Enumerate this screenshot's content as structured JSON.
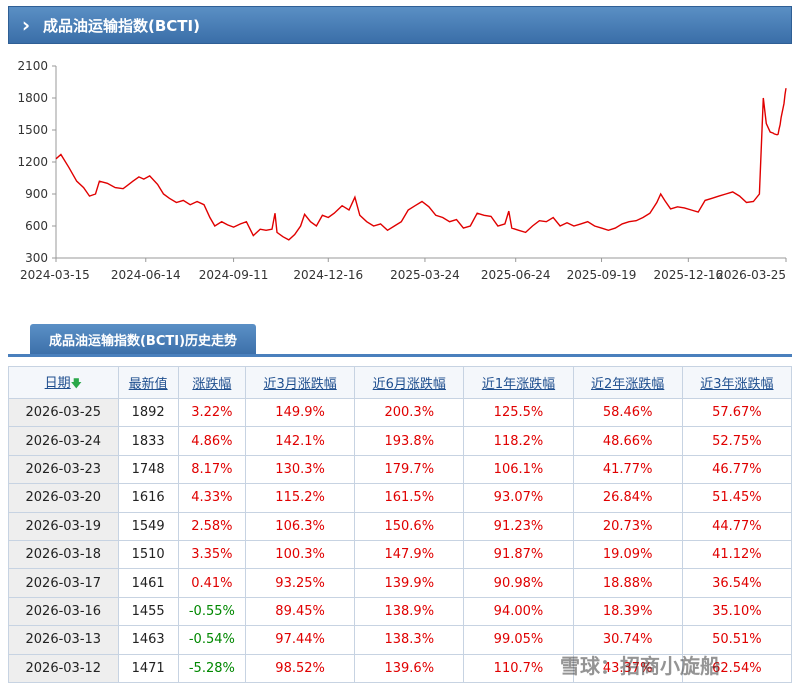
{
  "header": {
    "title": "成品油运输指数(BCTI)"
  },
  "tab": {
    "label": "成品油运输指数(BCTI)历史走势"
  },
  "chart_data": {
    "type": "line",
    "title": "",
    "xlabel": "",
    "ylabel": "",
    "ylim": [
      300,
      2100
    ],
    "yticks": [
      300,
      600,
      900,
      1200,
      1500,
      1800,
      2100
    ],
    "xticks": [
      "2024-03-15",
      "2024-06-14",
      "2024-09-11",
      "2024-12-16",
      "2025-03-24",
      "2025-06-24",
      "2025-09-19",
      "2025-12-16",
      "2026-03-25"
    ],
    "grid": false,
    "line_color": "#e00000",
    "series": [
      {
        "name": "",
        "points": [
          [
            "2024-03-15",
            1230
          ],
          [
            "2024-03-20",
            1270
          ],
          [
            "2024-03-28",
            1150
          ],
          [
            "2024-04-05",
            1020
          ],
          [
            "2024-04-12",
            960
          ],
          [
            "2024-04-18",
            880
          ],
          [
            "2024-04-24",
            900
          ],
          [
            "2024-04-28",
            1020
          ],
          [
            "2024-05-06",
            1000
          ],
          [
            "2024-05-14",
            960
          ],
          [
            "2024-05-22",
            950
          ],
          [
            "2024-06-01",
            1020
          ],
          [
            "2024-06-07",
            1060
          ],
          [
            "2024-06-12",
            1040
          ],
          [
            "2024-06-18",
            1070
          ],
          [
            "2024-06-26",
            990
          ],
          [
            "2024-07-02",
            900
          ],
          [
            "2024-07-08",
            860
          ],
          [
            "2024-07-15",
            820
          ],
          [
            "2024-07-22",
            840
          ],
          [
            "2024-07-29",
            800
          ],
          [
            "2024-08-05",
            830
          ],
          [
            "2024-08-12",
            800
          ],
          [
            "2024-08-18",
            680
          ],
          [
            "2024-08-23",
            600
          ],
          [
            "2024-08-30",
            640
          ],
          [
            "2024-09-05",
            610
          ],
          [
            "2024-09-11",
            590
          ],
          [
            "2024-09-18",
            620
          ],
          [
            "2024-09-24",
            640
          ],
          [
            "2024-10-01",
            510
          ],
          [
            "2024-10-08",
            570
          ],
          [
            "2024-10-14",
            560
          ],
          [
            "2024-10-20",
            570
          ],
          [
            "2024-10-23",
            720
          ],
          [
            "2024-10-25",
            540
          ],
          [
            "2024-10-31",
            500
          ],
          [
            "2024-11-06",
            470
          ],
          [
            "2024-11-12",
            520
          ],
          [
            "2024-11-18",
            600
          ],
          [
            "2024-11-22",
            710
          ],
          [
            "2024-11-28",
            640
          ],
          [
            "2024-12-04",
            600
          ],
          [
            "2024-12-10",
            700
          ],
          [
            "2024-12-16",
            680
          ],
          [
            "2024-12-22",
            720
          ],
          [
            "2024-12-30",
            790
          ],
          [
            "2025-01-06",
            750
          ],
          [
            "2025-01-12",
            870
          ],
          [
            "2025-01-17",
            700
          ],
          [
            "2025-01-24",
            640
          ],
          [
            "2025-01-31",
            600
          ],
          [
            "2025-02-07",
            620
          ],
          [
            "2025-02-14",
            560
          ],
          [
            "2025-02-21",
            600
          ],
          [
            "2025-02-28",
            640
          ],
          [
            "2025-03-07",
            750
          ],
          [
            "2025-03-14",
            790
          ],
          [
            "2025-03-21",
            830
          ],
          [
            "2025-03-28",
            780
          ],
          [
            "2025-04-04",
            700
          ],
          [
            "2025-04-11",
            680
          ],
          [
            "2025-04-18",
            640
          ],
          [
            "2025-04-25",
            660
          ],
          [
            "2025-05-02",
            580
          ],
          [
            "2025-05-09",
            600
          ],
          [
            "2025-05-16",
            720
          ],
          [
            "2025-05-23",
            700
          ],
          [
            "2025-05-30",
            690
          ],
          [
            "2025-06-06",
            600
          ],
          [
            "2025-06-13",
            620
          ],
          [
            "2025-06-17",
            740
          ],
          [
            "2025-06-20",
            580
          ],
          [
            "2025-06-27",
            560
          ],
          [
            "2025-07-04",
            540
          ],
          [
            "2025-07-11",
            600
          ],
          [
            "2025-07-18",
            650
          ],
          [
            "2025-07-25",
            640
          ],
          [
            "2025-08-01",
            680
          ],
          [
            "2025-08-08",
            600
          ],
          [
            "2025-08-15",
            630
          ],
          [
            "2025-08-22",
            600
          ],
          [
            "2025-08-29",
            620
          ],
          [
            "2025-09-05",
            640
          ],
          [
            "2025-09-12",
            600
          ],
          [
            "2025-09-19",
            580
          ],
          [
            "2025-09-26",
            560
          ],
          [
            "2025-10-03",
            580
          ],
          [
            "2025-10-10",
            620
          ],
          [
            "2025-10-17",
            640
          ],
          [
            "2025-10-24",
            650
          ],
          [
            "2025-10-31",
            680
          ],
          [
            "2025-11-07",
            720
          ],
          [
            "2025-11-14",
            820
          ],
          [
            "2025-11-18",
            900
          ],
          [
            "2025-11-22",
            840
          ],
          [
            "2025-11-28",
            760
          ],
          [
            "2025-12-05",
            780
          ],
          [
            "2025-12-12",
            770
          ],
          [
            "2025-12-19",
            750
          ],
          [
            "2025-12-26",
            730
          ],
          [
            "2026-01-02",
            840
          ],
          [
            "2026-01-09",
            860
          ],
          [
            "2026-01-16",
            880
          ],
          [
            "2026-01-23",
            900
          ],
          [
            "2026-01-30",
            920
          ],
          [
            "2026-02-06",
            880
          ],
          [
            "2026-02-13",
            820
          ],
          [
            "2026-02-20",
            830
          ],
          [
            "2026-02-26",
            900
          ],
          [
            "2026-03-02",
            1800
          ],
          [
            "2026-03-05",
            1560
          ],
          [
            "2026-03-09",
            1480
          ],
          [
            "2026-03-12",
            1471
          ],
          [
            "2026-03-13",
            1463
          ],
          [
            "2026-03-16",
            1455
          ],
          [
            "2026-03-17",
            1461
          ],
          [
            "2026-03-18",
            1510
          ],
          [
            "2026-03-19",
            1549
          ],
          [
            "2026-03-20",
            1616
          ],
          [
            "2026-03-23",
            1748
          ],
          [
            "2026-03-24",
            1833
          ],
          [
            "2026-03-25",
            1892
          ]
        ]
      }
    ]
  },
  "table": {
    "headers": [
      "日期",
      "最新值",
      "涨跌幅",
      "近3月涨跌幅",
      "近6月涨跌幅",
      "近1年涨跌幅",
      "近2年涨跌幅",
      "近3年涨跌幅"
    ],
    "sort_arrow": "🡇",
    "rows": [
      [
        "2026-03-25",
        "1892",
        "3.22%",
        "149.9%",
        "200.3%",
        "125.5%",
        "58.46%",
        "57.67%"
      ],
      [
        "2026-03-24",
        "1833",
        "4.86%",
        "142.1%",
        "193.8%",
        "118.2%",
        "48.66%",
        "52.75%"
      ],
      [
        "2026-03-23",
        "1748",
        "8.17%",
        "130.3%",
        "179.7%",
        "106.1%",
        "41.77%",
        "46.77%"
      ],
      [
        "2026-03-20",
        "1616",
        "4.33%",
        "115.2%",
        "161.5%",
        "93.07%",
        "26.84%",
        "51.45%"
      ],
      [
        "2026-03-19",
        "1549",
        "2.58%",
        "106.3%",
        "150.6%",
        "91.23%",
        "20.73%",
        "44.77%"
      ],
      [
        "2026-03-18",
        "1510",
        "3.35%",
        "100.3%",
        "147.9%",
        "91.87%",
        "19.09%",
        "41.12%"
      ],
      [
        "2026-03-17",
        "1461",
        "0.41%",
        "93.25%",
        "139.9%",
        "90.98%",
        "18.88%",
        "36.54%"
      ],
      [
        "2026-03-16",
        "1455",
        "-0.55%",
        "89.45%",
        "138.9%",
        "94.00%",
        "18.39%",
        "35.10%"
      ],
      [
        "2026-03-13",
        "1463",
        "-0.54%",
        "97.44%",
        "138.3%",
        "99.05%",
        "30.74%",
        "50.51%"
      ],
      [
        "2026-03-12",
        "1471",
        "-5.28%",
        "98.52%",
        "139.6%",
        "110.7%",
        "43.37%",
        "62.54%"
      ]
    ]
  },
  "watermark": {
    "text": "雪球：招商小旋船"
  }
}
